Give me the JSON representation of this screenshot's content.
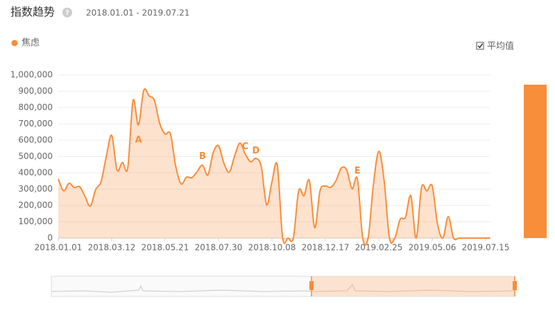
{
  "chart_data": {
    "type": "line",
    "title": "指数趋势",
    "date_range": "2018.01.01 - 2019.07.21",
    "average_label": "平均值",
    "x": [
      "2018.01.01",
      "2018.01.08",
      "2018.01.15",
      "2018.01.22",
      "2018.01.29",
      "2018.02.05",
      "2018.02.12",
      "2018.02.19",
      "2018.02.26",
      "2018.03.05",
      "2018.03.12",
      "2018.03.19",
      "2018.03.26",
      "2018.04.02",
      "2018.04.09",
      "2018.04.16",
      "2018.04.23",
      "2018.04.30",
      "2018.05.07",
      "2018.05.14",
      "2018.05.21",
      "2018.05.28",
      "2018.06.04",
      "2018.06.11",
      "2018.06.18",
      "2018.06.25",
      "2018.07.02",
      "2018.07.09",
      "2018.07.16",
      "2018.07.23",
      "2018.07.30",
      "2018.08.06",
      "2018.08.13",
      "2018.08.20",
      "2018.08.27",
      "2018.09.03",
      "2018.09.10",
      "2018.09.17",
      "2018.09.24",
      "2018.10.01",
      "2018.10.08",
      "2018.10.15",
      "2018.10.22",
      "2018.10.29",
      "2018.11.05",
      "2018.11.12",
      "2018.11.19",
      "2018.11.26",
      "2018.12.03",
      "2018.12.10",
      "2018.12.17",
      "2018.12.24",
      "2018.12.31",
      "2019.01.07",
      "2019.01.14",
      "2019.01.21",
      "2019.01.28",
      "2019.02.04",
      "2019.02.11",
      "2019.02.18",
      "2019.02.25",
      "2019.03.04",
      "2019.03.11",
      "2019.03.18",
      "2019.03.25",
      "2019.04.01",
      "2019.04.08",
      "2019.04.15",
      "2019.04.22",
      "2019.04.29",
      "2019.05.06",
      "2019.05.13",
      "2019.05.20",
      "2019.05.27",
      "2019.06.03",
      "2019.06.10",
      "2019.06.17",
      "2019.06.24",
      "2019.07.01",
      "2019.07.08",
      "2019.07.15",
      "2019.07.21"
    ],
    "series": [
      {
        "name": "焦虑",
        "color": "#f88d3a",
        "values": [
          362000,
          290000,
          336000,
          310000,
          315000,
          255000,
          196000,
          298000,
          345000,
          502000,
          630000,
          417000,
          464000,
          430000,
          843000,
          694000,
          906000,
          872000,
          843000,
          702000,
          638000,
          638000,
          438000,
          332000,
          374000,
          370000,
          408000,
          447000,
          387000,
          523000,
          566000,
          460000,
          404000,
          502000,
          583000,
          515000,
          468000,
          489000,
          438000,
          204000,
          345000,
          447000,
          0,
          0,
          0,
          290000,
          260000,
          353000,
          64000,
          290000,
          319000,
          311000,
          353000,
          430000,
          417000,
          302000,
          362000,
          0,
          0,
          330000,
          532000,
          353000,
          0,
          0,
          115000,
          128000,
          260000,
          0,
          311000,
          289000,
          319000,
          85000,
          0,
          132000,
          0,
          0,
          0,
          0,
          0,
          0,
          0,
          0
        ]
      }
    ],
    "xlim": [
      "2018.01.01",
      "2019.07.21"
    ],
    "xticks": [
      "2018.01.01",
      "2018.03.12",
      "2018.05.21",
      "2018.07.30",
      "2018.10.08",
      "2018.12.17",
      "2019.02.25",
      "2019.05.06",
      "2019.07.15"
    ],
    "ylim": [
      0,
      1000000
    ],
    "yticks": [
      0,
      {
        "value": 100000,
        "label": "100,000"
      },
      {
        "value": 200000,
        "label": "200,000"
      },
      {
        "value": 300000,
        "label": "300,000"
      },
      {
        "value": 400000,
        "label": "400,000"
      },
      {
        "value": 500000,
        "label": "500,000"
      },
      {
        "value": 600000,
        "label": "600,000"
      },
      {
        "value": 700000,
        "label": "700,000"
      },
      {
        "value": 800000,
        "label": "800,000"
      },
      {
        "value": 900000,
        "label": "900,000"
      },
      {
        "value": 1000000,
        "label": "1,000,000"
      }
    ],
    "grid": true,
    "annotations": [
      {
        "label": "A",
        "x": "2018.04.16",
        "y": 600000
      },
      {
        "label": "B",
        "x": "2018.07.09",
        "y": 500000
      },
      {
        "label": "C",
        "x": "2018.09.03",
        "y": 560000
      },
      {
        "label": "D",
        "x": "2018.09.17",
        "y": 535000
      },
      {
        "label": "E",
        "x": "2019.01.28",
        "y": 410000
      }
    ]
  }
}
